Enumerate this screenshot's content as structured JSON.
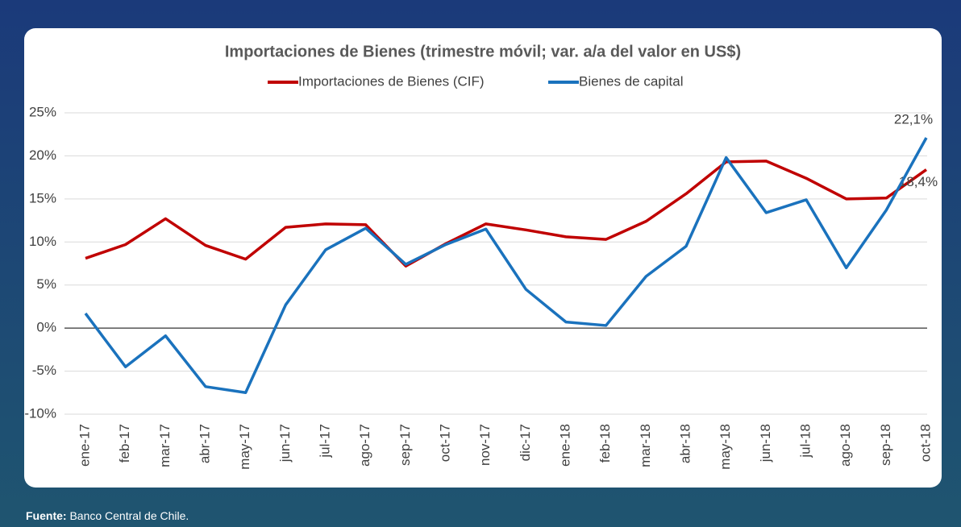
{
  "chart_data": {
    "type": "line",
    "title": "Importaciones de Bienes (trimestre móvil; var. a/a del valor en US$)",
    "categories": [
      "ene-17",
      "feb-17",
      "mar-17",
      "abr-17",
      "may-17",
      "jun-17",
      "jul-17",
      "ago-17",
      "sep-17",
      "oct-17",
      "nov-17",
      "dic-17",
      "ene-18",
      "feb-18",
      "mar-18",
      "abr-18",
      "may-18",
      "jun-18",
      "jul-18",
      "ago-18",
      "sep-18",
      "oct-18"
    ],
    "series": [
      {
        "name": "Importaciones de Bienes (CIF)",
        "color": "#c00000",
        "values": [
          8.1,
          9.7,
          12.7,
          9.6,
          8.0,
          11.7,
          12.1,
          12.0,
          7.2,
          9.8,
          12.1,
          11.4,
          10.6,
          10.3,
          12.4,
          15.6,
          19.3,
          19.4,
          17.4,
          15.0,
          15.1,
          18.4
        ],
        "value_labels": [
          null,
          null,
          null,
          null,
          null,
          null,
          null,
          null,
          null,
          null,
          null,
          null,
          null,
          null,
          null,
          null,
          null,
          null,
          null,
          null,
          null,
          "18,4%"
        ]
      },
      {
        "name": "Bienes de capital",
        "color": "#1a72bd",
        "values": [
          1.7,
          -4.5,
          -0.9,
          -6.8,
          -7.5,
          2.7,
          9.1,
          11.6,
          7.4,
          9.7,
          11.5,
          4.5,
          0.7,
          0.3,
          6.0,
          9.5,
          19.8,
          13.4,
          14.9,
          7.0,
          13.7,
          22.1
        ],
        "value_labels": [
          null,
          null,
          null,
          null,
          null,
          null,
          null,
          null,
          null,
          null,
          null,
          null,
          null,
          null,
          null,
          null,
          null,
          null,
          null,
          null,
          null,
          "22,1%"
        ]
      }
    ],
    "ylim": [
      -10,
      25
    ],
    "yticks": [
      {
        "value": -10,
        "label": "-10%"
      },
      {
        "value": -5,
        "label": "-5%"
      },
      {
        "value": 0,
        "label": "0%"
      },
      {
        "value": 5,
        "label": "5%"
      },
      {
        "value": 10,
        "label": "10%"
      },
      {
        "value": 15,
        "label": "15%"
      },
      {
        "value": 20,
        "label": "20%"
      },
      {
        "value": 25,
        "label": "25%"
      }
    ],
    "grid": true,
    "legend": "top"
  },
  "footer": {
    "label": "Fuente:",
    "text": "Banco Central de Chile."
  }
}
